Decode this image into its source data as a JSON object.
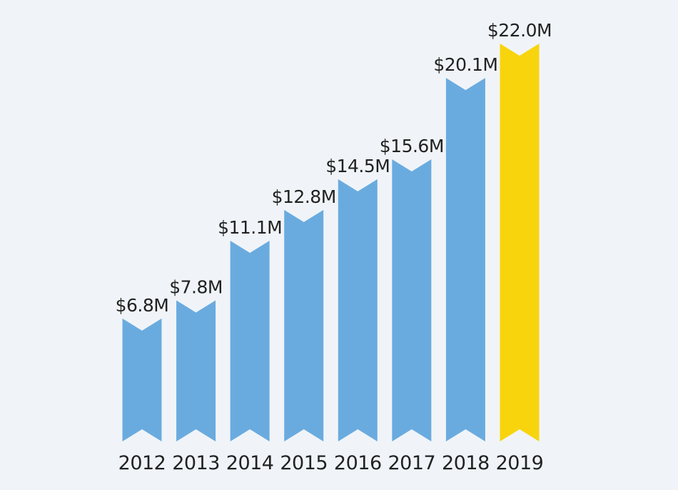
{
  "chart_data": {
    "type": "bar",
    "categories": [
      "2012",
      "2013",
      "2014",
      "2015",
      "2016",
      "2017",
      "2018",
      "2019"
    ],
    "values": [
      6.8,
      7.8,
      11.1,
      12.8,
      14.5,
      15.6,
      20.1,
      22.0
    ],
    "data_labels": [
      "$6.8M",
      "$7.8M",
      "$11.1M",
      "$12.8M",
      "$14.5M",
      "$15.6M",
      "$20.1M",
      "$22.0M"
    ],
    "ylim": [
      0,
      22.0
    ],
    "grid": false,
    "legend": "none",
    "bar_style": "ribbon with notched ends",
    "colors": {
      "default": "#6aabdf",
      "highlight": "#f8d40d",
      "highlight_category": "2019",
      "background": "#f0f4f8",
      "text": "#222222"
    }
  }
}
